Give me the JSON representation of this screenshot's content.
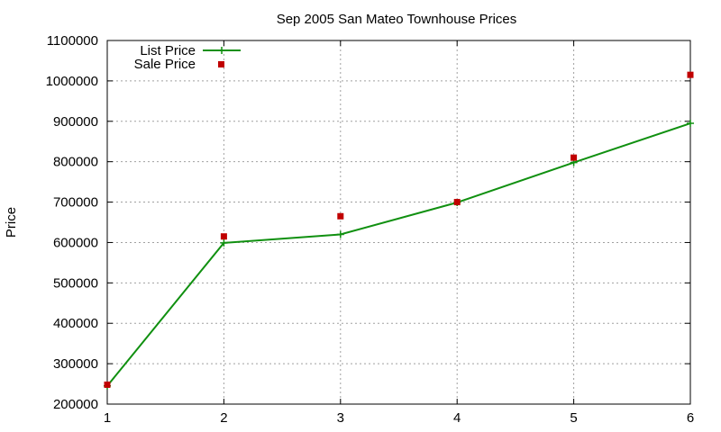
{
  "chart_data": {
    "type": "line",
    "title": "Sep 2005 San Mateo Townhouse Prices",
    "xlabel": "",
    "ylabel": "Price",
    "x": [
      1,
      2,
      3,
      4,
      5,
      6
    ],
    "xlim": [
      1,
      6
    ],
    "ylim": [
      200000,
      1100000
    ],
    "x_ticks": [
      "1",
      "2",
      "3",
      "4",
      "5",
      "6"
    ],
    "y_ticks": [
      "200000",
      "300000",
      "400000",
      "500000",
      "600000",
      "700000",
      "800000",
      "900000",
      "1000000",
      "1100000"
    ],
    "grid": true,
    "legend_position": "top-left",
    "series": [
      {
        "name": "List Price",
        "style": "line-with-plus-markers",
        "color": "#109010",
        "values": [
          245000,
          599000,
          620000,
          699000,
          798000,
          895000
        ]
      },
      {
        "name": "Sale Price",
        "style": "square-markers",
        "color": "#c00000",
        "values": [
          248000,
          615000,
          665000,
          700000,
          810000,
          1015000
        ]
      }
    ]
  }
}
